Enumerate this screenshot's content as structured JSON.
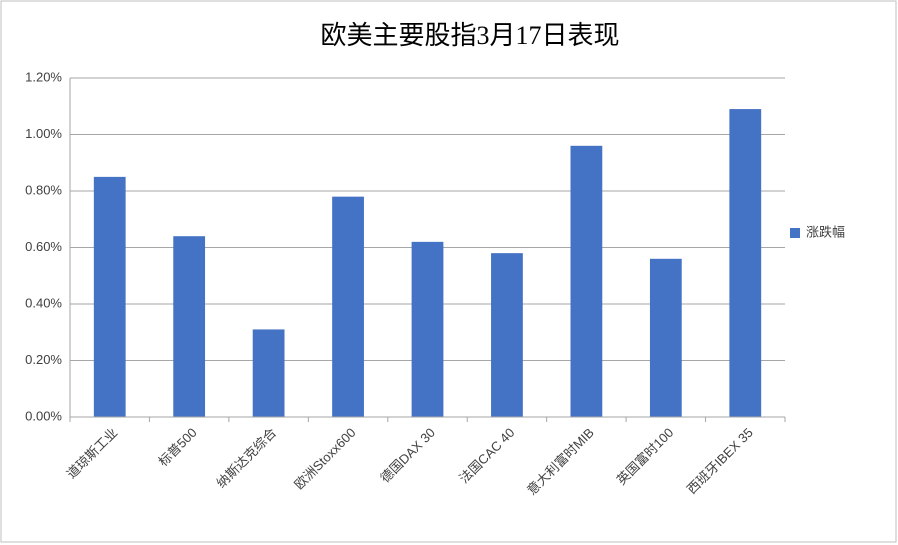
{
  "chart_data": {
    "type": "bar",
    "title": "欧美主要股指3月17日表现",
    "categories": [
      "道琼斯工业",
      "标普500",
      "纳斯达克综合",
      "欧洲Stoxx600",
      "德国DAX 30",
      "法国CAC 40",
      "意大利富时MIB",
      "英国富时100",
      "西班牙IBEX 35"
    ],
    "series": [
      {
        "name": "涨跌幅",
        "color": "#4472c4",
        "values": [
          0.85,
          0.64,
          0.31,
          0.78,
          0.62,
          0.58,
          0.96,
          0.56,
          1.09
        ]
      }
    ],
    "ylim": [
      0,
      1.2
    ],
    "yticks": [
      {
        "value": 0,
        "label": "0.00%"
      },
      {
        "value": 0.2,
        "label": "0.20%"
      },
      {
        "value": 0.4,
        "label": "0.40%"
      },
      {
        "value": 0.6,
        "label": "0.60%"
      },
      {
        "value": 0.8,
        "label": "0.80%"
      },
      {
        "value": 1.0,
        "label": "1.00%"
      },
      {
        "value": 1.2,
        "label": "1.20%"
      }
    ],
    "grid": true,
    "legend": "right"
  }
}
